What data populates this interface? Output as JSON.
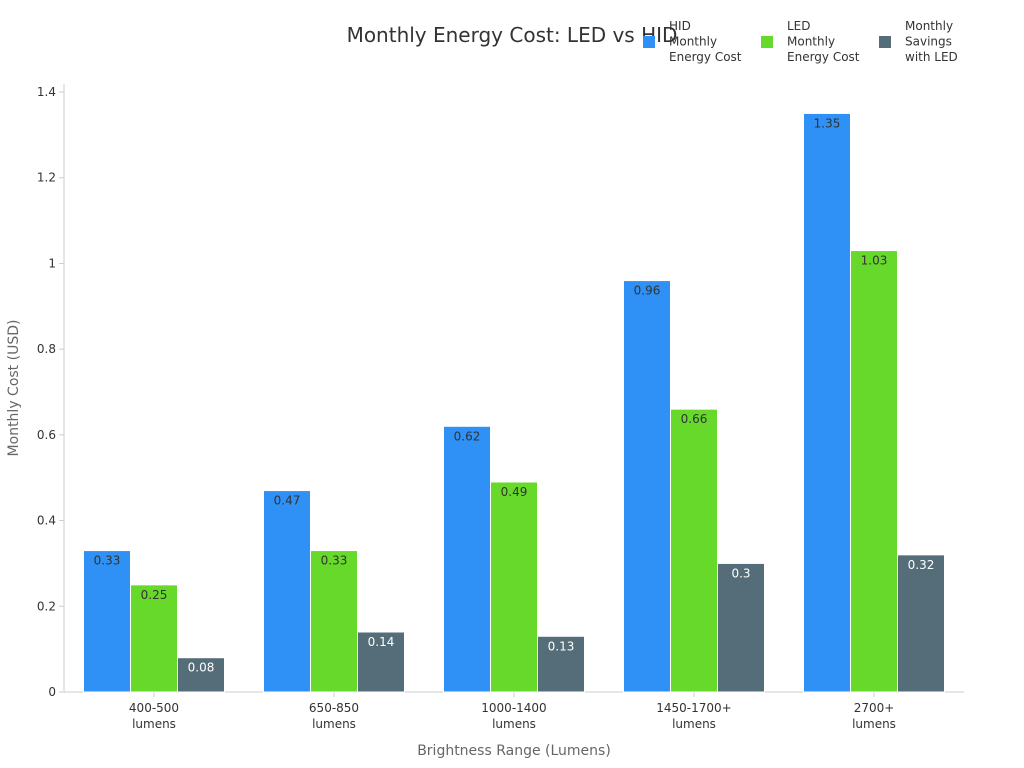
{
  "chart_data": {
    "type": "bar",
    "title": "Monthly Energy Cost: LED vs HID",
    "xlabel": "Brightness Range (Lumens)",
    "ylabel": "Monthly Cost (USD)",
    "ylim": [
      0,
      1.4
    ],
    "yticks": [
      "0",
      "0.2",
      "0.4",
      "0.6",
      "0.8",
      "1",
      "1.2",
      "1.4"
    ],
    "grid": false,
    "legend_position": "top-right",
    "categories": [
      [
        "400-500",
        "lumens"
      ],
      [
        "650-850",
        "lumens"
      ],
      [
        "1000-1400",
        "lumens"
      ],
      [
        "1450-1700+",
        "lumens"
      ],
      [
        "2700+",
        "lumens"
      ]
    ],
    "series": [
      {
        "name": "HID Monthly Energy Cost",
        "legend_lines": [
          "HID",
          "Monthly",
          "Energy Cost"
        ],
        "color": "#2f91f5",
        "label_color": "#333333",
        "values": [
          0.33,
          0.47,
          0.62,
          0.96,
          1.35
        ]
      },
      {
        "name": "LED Monthly Energy Cost",
        "legend_lines": [
          "LED",
          "Monthly",
          "Energy Cost"
        ],
        "color": "#66d92b",
        "label_color": "#333333",
        "values": [
          0.25,
          0.33,
          0.49,
          0.66,
          1.03
        ]
      },
      {
        "name": "Monthly Savings with LED",
        "legend_lines": [
          "Monthly",
          "Savings",
          "with LED"
        ],
        "color": "#556d78",
        "label_color": "#ffffff",
        "values": [
          0.08,
          0.14,
          0.13,
          0.3,
          0.32
        ]
      }
    ]
  }
}
